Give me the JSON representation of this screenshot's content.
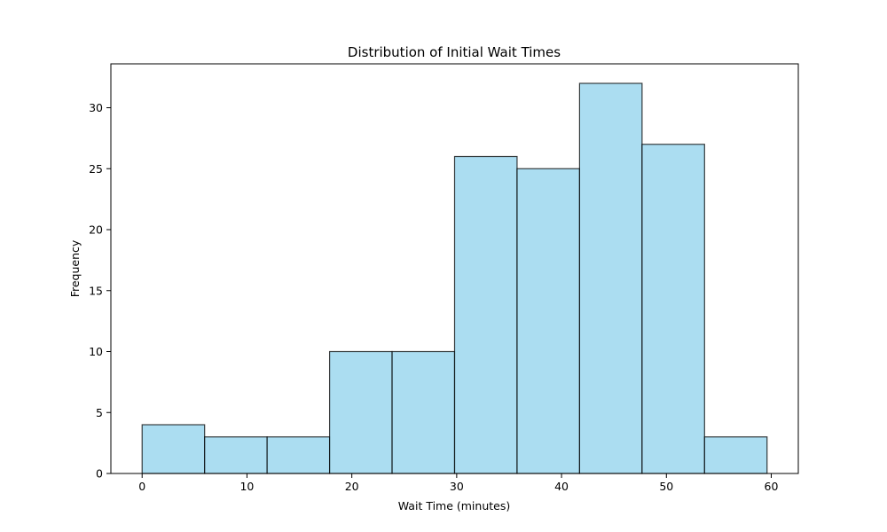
{
  "chart_data": {
    "type": "bar",
    "title": "Distribution of Initial Wait Times",
    "xlabel": "Wait Time (minutes)",
    "ylabel": "Frequency",
    "bins": [
      {
        "start": 0.0,
        "end": 5.96,
        "count": 4
      },
      {
        "start": 5.96,
        "end": 11.92,
        "count": 3
      },
      {
        "start": 11.92,
        "end": 17.88,
        "count": 3
      },
      {
        "start": 17.88,
        "end": 23.84,
        "count": 10
      },
      {
        "start": 23.84,
        "end": 29.8,
        "count": 10
      },
      {
        "start": 29.8,
        "end": 35.76,
        "count": 26
      },
      {
        "start": 35.76,
        "end": 41.72,
        "count": 25
      },
      {
        "start": 41.72,
        "end": 47.68,
        "count": 32
      },
      {
        "start": 47.68,
        "end": 53.64,
        "count": 27
      },
      {
        "start": 53.64,
        "end": 59.6,
        "count": 3
      }
    ],
    "xlim": [
      -2.98,
      62.58
    ],
    "ylim": [
      0,
      33.6
    ],
    "xticks": [
      0,
      10,
      20,
      30,
      40,
      50,
      60
    ],
    "yticks": [
      0,
      5,
      10,
      15,
      20,
      25,
      30
    ],
    "grid": false,
    "colors": {
      "bar_fill": "#87ceeb",
      "bar_opacity": 0.7,
      "bar_edge": "#000000"
    }
  }
}
